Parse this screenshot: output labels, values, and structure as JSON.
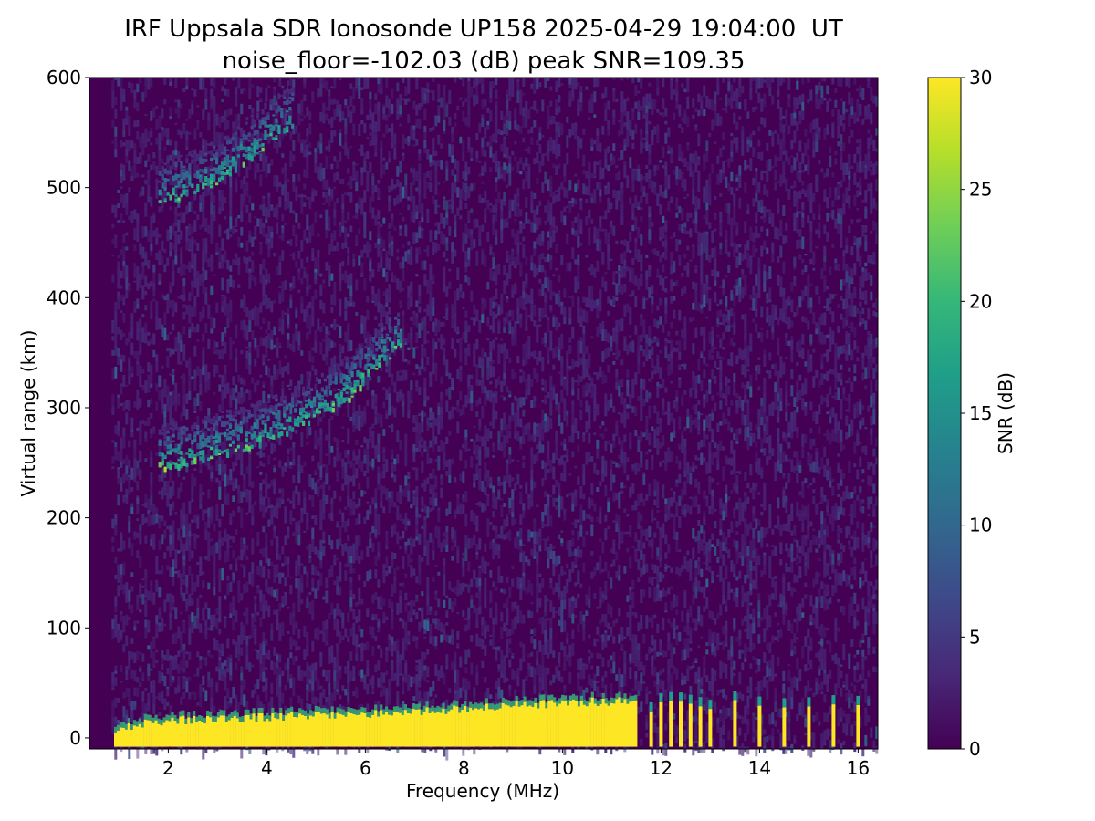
{
  "chart_data": {
    "type": "heatmap",
    "title": "IRF Uppsala SDR Ionosonde UP158 2025-04-29 19:04:00  UT",
    "subtitle": "noise_floor=-102.03 (dB) peak SNR=109.35",
    "xlabel": "Frequency (MHz)",
    "ylabel": "Virtual range (km)",
    "xlim": [
      0.4,
      16.4
    ],
    "ylim": [
      -10,
      600
    ],
    "xticks": [
      2,
      4,
      6,
      8,
      10,
      12,
      14,
      16
    ],
    "yticks": [
      0,
      100,
      200,
      300,
      400,
      500,
      600
    ],
    "grid": false,
    "colorbar": {
      "label": "SNR (dB)",
      "range": [
        0,
        30
      ],
      "ticks": [
        0,
        5,
        10,
        15,
        20,
        25,
        30
      ],
      "colormap": "viridis",
      "colors": [
        "#440154",
        "#482878",
        "#3e4989",
        "#31688e",
        "#26828e",
        "#1f9e89",
        "#35b779",
        "#6ece58",
        "#b5de2b",
        "#fde725"
      ]
    },
    "data_coverage": {
      "freq_start": 0.85,
      "freq_end": 16.4
    },
    "echo_traces": [
      {
        "name": "ground-clutter",
        "points": [
          [
            0.9,
            5
          ],
          [
            2,
            12
          ],
          [
            4,
            15
          ],
          [
            6,
            18
          ],
          [
            8,
            22
          ],
          [
            10,
            28
          ],
          [
            11.5,
            30
          ]
        ],
        "snr": 30
      },
      {
        "name": "f-layer",
        "points": [
          [
            1.8,
            245
          ],
          [
            2.5,
            250
          ],
          [
            3.0,
            257
          ],
          [
            3.5,
            262
          ],
          [
            4.0,
            270
          ],
          [
            4.5,
            280
          ],
          [
            5.0,
            290
          ],
          [
            5.7,
            310
          ],
          [
            6.2,
            335
          ],
          [
            6.7,
            355
          ]
        ],
        "snr": 26
      },
      {
        "name": "f-layer-multihop",
        "points": [
          [
            1.8,
            485
          ],
          [
            2.5,
            495
          ],
          [
            3.0,
            505
          ],
          [
            3.5,
            520
          ],
          [
            4.0,
            540
          ],
          [
            4.5,
            555
          ]
        ],
        "snr": 24
      }
    ],
    "discrete_channels": [
      11.8,
      12.0,
      12.2,
      12.4,
      12.6,
      12.8,
      13.0,
      13.5,
      14.0,
      14.5,
      15.0,
      15.5,
      16.0
    ]
  }
}
